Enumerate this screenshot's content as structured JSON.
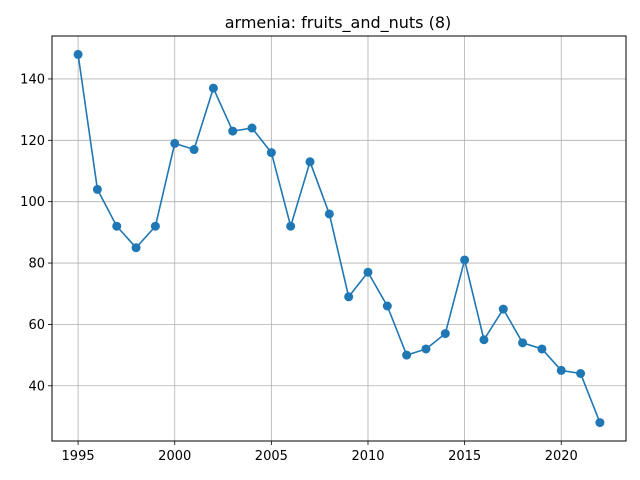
{
  "chart_data": {
    "type": "line",
    "title": "armenia: fruits_and_nuts (8)",
    "xlabel": "",
    "ylabel": "",
    "x": [
      1995,
      1996,
      1997,
      1998,
      1999,
      2000,
      2001,
      2002,
      2003,
      2004,
      2005,
      2006,
      2007,
      2008,
      2009,
      2010,
      2011,
      2012,
      2013,
      2014,
      2015,
      2016,
      2017,
      2018,
      2019,
      2020,
      2021,
      2022
    ],
    "series": [
      {
        "values": [
          148,
          104,
          92,
          85,
          92,
          119,
          117,
          137,
          123,
          124,
          116,
          92,
          113,
          96,
          69,
          77,
          66,
          50,
          52,
          57,
          81,
          55,
          65,
          54,
          52,
          45,
          44,
          28
        ]
      }
    ],
    "xlim": [
      1993.65,
      2023.35
    ],
    "ylim": [
      22,
      154
    ],
    "x_ticks": [
      1995,
      2000,
      2005,
      2010,
      2015,
      2020
    ],
    "y_ticks": [
      40,
      60,
      80,
      100,
      120,
      140
    ],
    "grid": true,
    "legend": "none",
    "color": "#1f77b4",
    "marker": "circle"
  }
}
